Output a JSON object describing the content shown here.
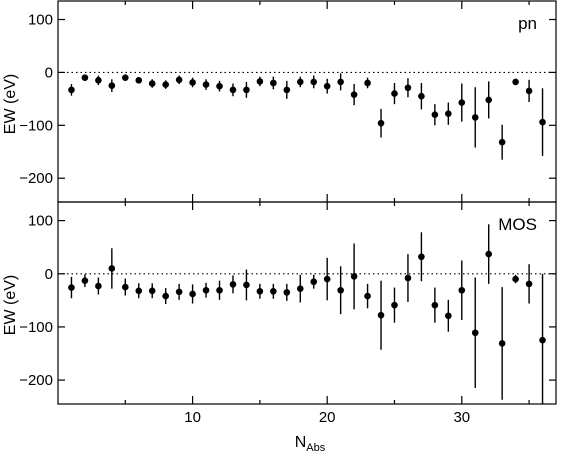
{
  "chart_data": [
    {
      "type": "scatter",
      "panel_label": "pn",
      "xlabel": "",
      "ylabel": "EW (eV)",
      "xlim": [
        0,
        37
      ],
      "ylim": [
        -245,
        135
      ],
      "yticks": [
        100,
        0,
        -100,
        -200
      ],
      "ytick_labels": [
        "100",
        "0",
        "−100",
        "−200"
      ],
      "reference_line": 0,
      "points": [
        {
          "x": 1,
          "y": -33,
          "err": 11
        },
        {
          "x": 2,
          "y": -10,
          "err": 6
        },
        {
          "x": 3,
          "y": -15,
          "err": 9
        },
        {
          "x": 4,
          "y": -25,
          "err": 12
        },
        {
          "x": 5,
          "y": -10,
          "err": 5
        },
        {
          "x": 6,
          "y": -15,
          "err": 6
        },
        {
          "x": 7,
          "y": -21,
          "err": 8
        },
        {
          "x": 8,
          "y": -23,
          "err": 8
        },
        {
          "x": 9,
          "y": -14,
          "err": 8
        },
        {
          "x": 10,
          "y": -19,
          "err": 9
        },
        {
          "x": 11,
          "y": -23,
          "err": 10
        },
        {
          "x": 12,
          "y": -26,
          "err": 10
        },
        {
          "x": 13,
          "y": -33,
          "err": 12
        },
        {
          "x": 14,
          "y": -33,
          "err": 15
        },
        {
          "x": 15,
          "y": -17,
          "err": 9
        },
        {
          "x": 16,
          "y": -20,
          "err": 12
        },
        {
          "x": 17,
          "y": -33,
          "err": 17
        },
        {
          "x": 18,
          "y": -18,
          "err": 10
        },
        {
          "x": 19,
          "y": -18,
          "err": 12
        },
        {
          "x": 20,
          "y": -26,
          "err": 14
        },
        {
          "x": 21,
          "y": -18,
          "err": 16
        },
        {
          "x": 22,
          "y": -42,
          "err": 20
        },
        {
          "x": 23,
          "y": -20,
          "err": 10
        },
        {
          "x": 24,
          "y": -96,
          "err": 27
        },
        {
          "x": 25,
          "y": -40,
          "err": 20
        },
        {
          "x": 26,
          "y": -29,
          "err": 18
        },
        {
          "x": 27,
          "y": -45,
          "err": 25
        },
        {
          "x": 28,
          "y": -80,
          "err": 20
        },
        {
          "x": 29,
          "y": -78,
          "err": 21
        },
        {
          "x": 30,
          "y": -57,
          "err": 36
        },
        {
          "x": 31,
          "y": -85,
          "err": 57
        },
        {
          "x": 32,
          "y": -52,
          "err": 35
        },
        {
          "x": 33,
          "y": -132,
          "err": 33
        },
        {
          "x": 34,
          "y": -18,
          "err": 6
        },
        {
          "x": 35,
          "y": -35,
          "err": 21
        },
        {
          "x": 36,
          "y": -94,
          "err": 64
        }
      ]
    },
    {
      "type": "scatter",
      "panel_label": "MOS",
      "xlabel": "N",
      "xlabel_sub": "Abs",
      "ylabel": "EW (eV)",
      "xlim": [
        0,
        37
      ],
      "ylim": [
        -245,
        135
      ],
      "xticks": [
        10,
        20,
        30
      ],
      "xtick_labels": [
        "10",
        "20",
        "30"
      ],
      "yticks": [
        100,
        0,
        -100,
        -200
      ],
      "ytick_labels": [
        "100",
        "0",
        "−100",
        "−200"
      ],
      "reference_line": 0,
      "points": [
        {
          "x": 1,
          "y": -26,
          "err": 20
        },
        {
          "x": 2,
          "y": -13,
          "err": 12
        },
        {
          "x": 3,
          "y": -23,
          "err": 16
        },
        {
          "x": 4,
          "y": 10,
          "err": 38
        },
        {
          "x": 5,
          "y": -25,
          "err": 16
        },
        {
          "x": 6,
          "y": -32,
          "err": 14
        },
        {
          "x": 7,
          "y": -32,
          "err": 14
        },
        {
          "x": 8,
          "y": -42,
          "err": 15
        },
        {
          "x": 9,
          "y": -34,
          "err": 15
        },
        {
          "x": 10,
          "y": -38,
          "err": 18
        },
        {
          "x": 11,
          "y": -31,
          "err": 14
        },
        {
          "x": 12,
          "y": -31,
          "err": 18
        },
        {
          "x": 13,
          "y": -20,
          "err": 17
        },
        {
          "x": 14,
          "y": -21,
          "err": 29
        },
        {
          "x": 15,
          "y": -33,
          "err": 14
        },
        {
          "x": 16,
          "y": -33,
          "err": 14
        },
        {
          "x": 17,
          "y": -35,
          "err": 16
        },
        {
          "x": 18,
          "y": -28,
          "err": 26
        },
        {
          "x": 19,
          "y": -15,
          "err": 13
        },
        {
          "x": 20,
          "y": -10,
          "err": 40
        },
        {
          "x": 21,
          "y": -31,
          "err": 45
        },
        {
          "x": 22,
          "y": -5,
          "err": 62
        },
        {
          "x": 23,
          "y": -42,
          "err": 23
        },
        {
          "x": 24,
          "y": -78,
          "err": 65
        },
        {
          "x": 25,
          "y": -59,
          "err": 33
        },
        {
          "x": 26,
          "y": -8,
          "err": 45
        },
        {
          "x": 27,
          "y": 32,
          "err": 46
        },
        {
          "x": 28,
          "y": -59,
          "err": 33
        },
        {
          "x": 29,
          "y": -79,
          "err": 30
        },
        {
          "x": 30,
          "y": -31,
          "err": 56
        },
        {
          "x": 31,
          "y": -111,
          "err": 104
        },
        {
          "x": 32,
          "y": 37,
          "err": 56
        },
        {
          "x": 33,
          "y": -131,
          "err": 106
        },
        {
          "x": 34,
          "y": -10,
          "err": 8
        },
        {
          "x": 35,
          "y": -19,
          "err": 37
        },
        {
          "x": 36,
          "y": -125,
          "err": 125
        }
      ]
    }
  ],
  "style": {
    "point_color": "#000000",
    "axis_color": "#000000",
    "background": "#ffffff"
  }
}
